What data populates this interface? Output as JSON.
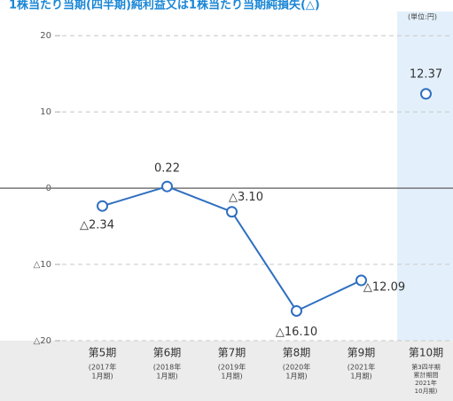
{
  "chart_data": {
    "type": "line",
    "title": "1株当たり当期(四半期)純利益又は1株当たり当期純損失(△)",
    "unit": "(単位:円)",
    "categories": [
      "第5期",
      "第6期",
      "第7期",
      "第8期",
      "第9期",
      "第10期"
    ],
    "category_notes": [
      [
        "(2017年",
        "1月期)"
      ],
      [
        "(2018年",
        "1月期)"
      ],
      [
        "(2019年",
        "1月期)"
      ],
      [
        "(2020年",
        "1月期)"
      ],
      [
        "(2021年",
        "1月期)"
      ],
      [
        "第3四半期",
        "累計期間",
        "2021年",
        "10月期)"
      ]
    ],
    "series": [
      {
        "color": "#2f6fc0",
        "values": [
          -2.34,
          0.22,
          -3.1,
          -16.1,
          -12.09,
          null
        ],
        "value_labels": [
          "△2.34",
          "0.22",
          "△3.10",
          "△16.10",
          "△12.09",
          null
        ]
      },
      {
        "color": "#2f6fc0",
        "values": [
          null,
          null,
          null,
          null,
          null,
          12.37
        ],
        "value_labels": [
          null,
          null,
          null,
          null,
          null,
          "12.37"
        ]
      }
    ],
    "ylim": [
      -20,
      22
    ],
    "yticks": [
      {
        "value": -20,
        "label": "△20"
      },
      {
        "value": -10,
        "label": "△10"
      },
      0,
      10,
      20
    ],
    "grid": true,
    "highlight_category": 5
  }
}
